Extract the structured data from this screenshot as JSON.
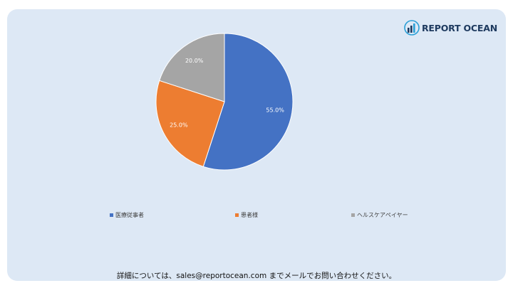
{
  "brand": {
    "name": "REPORT OCEAN"
  },
  "colors": {
    "card_bg": "#dde8f5",
    "brand_dark": "#1e3a5f",
    "brand_accent": "#2a9fd6"
  },
  "chart_data": {
    "type": "pie",
    "title": "",
    "categories": [
      "医療従事者",
      "患者様",
      "ヘルスケアペイヤー"
    ],
    "values": [
      55.0,
      25.0,
      20.0
    ],
    "labels": [
      "55.0%",
      "25.0%",
      "20.0%"
    ],
    "colors": [
      "#4472c4",
      "#ed7d31",
      "#a5a5a5"
    ],
    "start": "12 o'clock, clockwise",
    "legend_position": "bottom"
  },
  "footer": {
    "text": "詳細については、sales@reportocean.com までメールでお問い合わせください。"
  }
}
